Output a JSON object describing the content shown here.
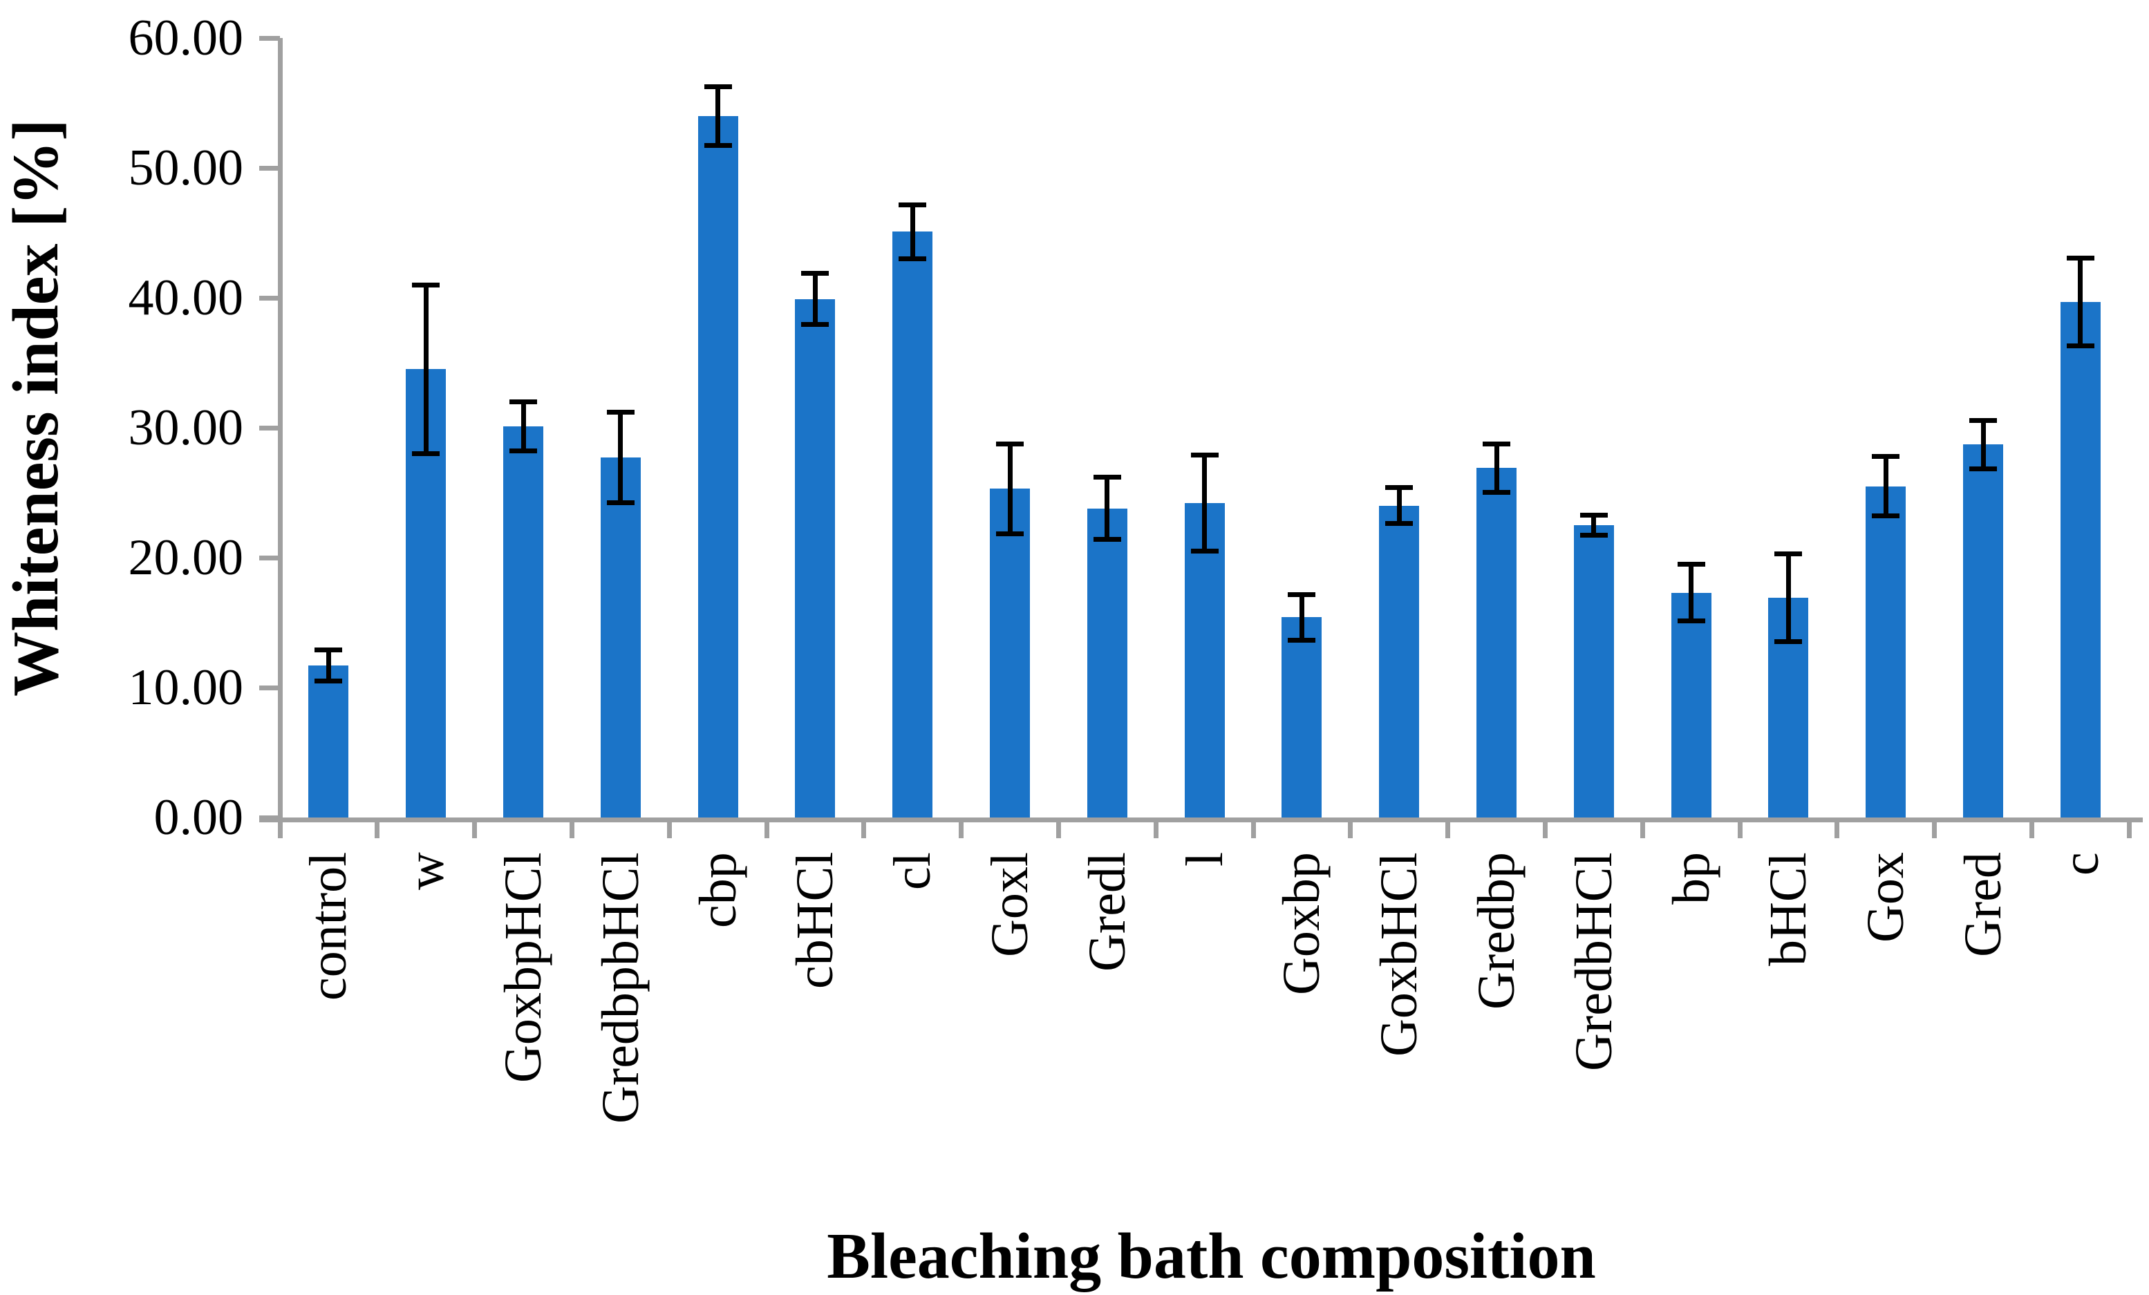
{
  "chart_data": {
    "type": "bar",
    "title": "",
    "xlabel": "Bleaching bath composition",
    "ylabel": "Whiteness index [%]",
    "categories": [
      "control",
      "w",
      "GoxbpHCl",
      "GredbpbHCl",
      "cbp",
      "cbHCl",
      "cl",
      "Goxl",
      "Gredl",
      "l",
      "Goxbp",
      "GoxbHCl",
      "Gredbp",
      "GredbHCl",
      "bp",
      "bHCl",
      "Gox",
      "Gred",
      "c"
    ],
    "values": [
      11.7,
      34.5,
      30.1,
      27.7,
      54.0,
      39.9,
      45.1,
      25.3,
      23.8,
      24.2,
      15.4,
      24.0,
      26.9,
      22.5,
      17.3,
      16.9,
      25.5,
      28.7,
      39.7
    ],
    "errors": [
      1.2,
      6.5,
      1.9,
      3.5,
      2.3,
      2.0,
      2.1,
      3.5,
      2.4,
      3.7,
      1.8,
      1.4,
      1.9,
      0.8,
      2.2,
      3.4,
      2.3,
      1.9,
      3.4
    ],
    "ylim": [
      0,
      60
    ],
    "ytick_step": 10,
    "ytick_labels": [
      "0.00",
      "10.00",
      "20.00",
      "30.00",
      "40.00",
      "50.00",
      "60.00"
    ],
    "grid": false,
    "legend_position": "none",
    "bar_color": "#1B74C8",
    "error_color": "#000000",
    "axis_color": "#A0A0A0"
  }
}
